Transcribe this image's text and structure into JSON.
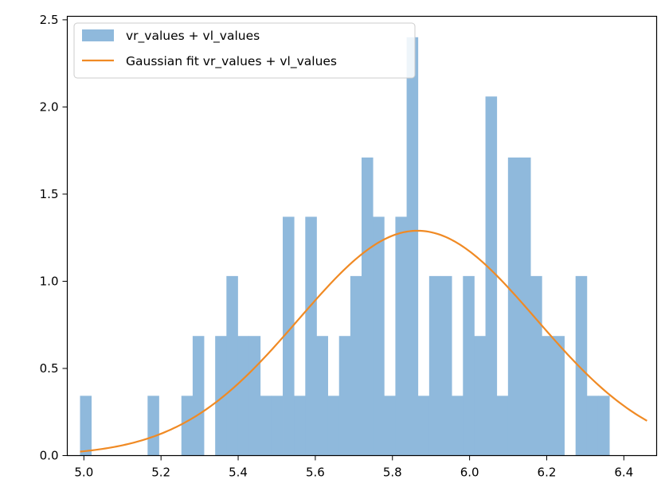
{
  "chart_data": {
    "type": "bar",
    "title": "",
    "xlabel": "",
    "ylabel": "",
    "xlim": [
      4.957,
      6.485
    ],
    "ylim": [
      0,
      2.52
    ],
    "bin_start": 4.99,
    "bin_width": 0.0292,
    "bin_values": [
      0.343,
      0,
      0,
      0,
      0,
      0,
      0.343,
      0,
      0,
      0.343,
      0.686,
      0,
      0.686,
      1.03,
      0.686,
      0.686,
      0.343,
      0.343,
      1.37,
      0.343,
      1.37,
      0.686,
      0.343,
      0.686,
      1.03,
      1.71,
      1.37,
      0.343,
      1.37,
      2.4,
      0.343,
      1.03,
      1.03,
      0.343,
      1.03,
      0.686,
      2.06,
      0.343,
      1.71,
      1.71,
      1.03,
      0.686,
      0.686,
      0,
      1.03,
      0.343,
      0.343
    ],
    "xticks": [
      {
        "value": 5.0,
        "label": "5.0"
      },
      {
        "value": 5.2,
        "label": "5.2"
      },
      {
        "value": 5.4,
        "label": "5.4"
      },
      {
        "value": 5.6,
        "label": "5.6"
      },
      {
        "value": 5.8,
        "label": "5.8"
      },
      {
        "value": 6.0,
        "label": "6.0"
      },
      {
        "value": 6.2,
        "label": "6.2"
      },
      {
        "value": 6.4,
        "label": "6.4"
      }
    ],
    "yticks": [
      {
        "value": 0.0,
        "label": "0.0"
      },
      {
        "value": 0.5,
        "label": "0.5"
      },
      {
        "value": 1.0,
        "label": "1.0"
      },
      {
        "value": 1.5,
        "label": "1.5"
      },
      {
        "value": 2.0,
        "label": "2.0"
      },
      {
        "value": 2.5,
        "label": "2.5"
      }
    ],
    "gaussian_fit": {
      "mean": 5.865,
      "std": 0.308,
      "peak": 1.29,
      "x_range": [
        4.99,
        6.46
      ]
    },
    "series": [
      {
        "name": "vr_values + vl_values",
        "kind": "histogram",
        "color": "#8fb9dc"
      },
      {
        "name": "Gaussian fit vr_values + vl_values",
        "kind": "line",
        "color": "#f08a24"
      }
    ],
    "legend": {
      "placement": "upper-left"
    },
    "grid": false
  }
}
